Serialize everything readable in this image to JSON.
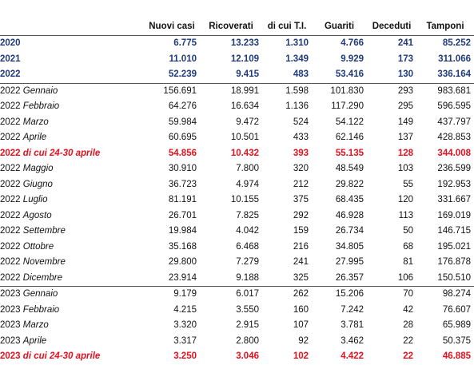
{
  "headers": [
    "",
    "Nuovi casi",
    "Ricoverati",
    "di cui T.I.",
    "Guariti",
    "Deceduti",
    "Tamponi"
  ],
  "rows": [
    {
      "type": "year",
      "year": "2020",
      "month": "",
      "values": [
        "6.775",
        "13.233",
        "1.310",
        "4.766",
        "241",
        "85.252"
      ]
    },
    {
      "type": "year",
      "year": "2021",
      "month": "",
      "values": [
        "11.010",
        "12.109",
        "1.349",
        "9.929",
        "173",
        "311.066"
      ]
    },
    {
      "type": "year",
      "year": "2022",
      "month": "",
      "values": [
        "52.239",
        "9.415",
        "483",
        "53.416",
        "130",
        "336.164"
      ]
    },
    {
      "type": "month",
      "year": "2022",
      "month": "Gennaio",
      "values": [
        "156.691",
        "18.991",
        "1.598",
        "101.830",
        "293",
        "983.681"
      ]
    },
    {
      "type": "month",
      "year": "2022",
      "month": "Febbraio",
      "values": [
        "64.276",
        "16.634",
        "1.136",
        "117.290",
        "295",
        "596.595"
      ]
    },
    {
      "type": "month",
      "year": "2022",
      "month": "Marzo",
      "values": [
        "59.984",
        "9.472",
        "524",
        "54.122",
        "149",
        "437.797"
      ]
    },
    {
      "type": "month",
      "year": "2022",
      "month": "Aprile",
      "values": [
        "60.695",
        "10.501",
        "433",
        "62.146",
        "137",
        "428.853"
      ]
    },
    {
      "type": "highlight",
      "year": "2022",
      "month": "di cui 24-30 aprile",
      "values": [
        "54.856",
        "10.432",
        "393",
        "55.135",
        "128",
        "344.008"
      ]
    },
    {
      "type": "month",
      "year": "2022",
      "month": "Maggio",
      "values": [
        "30.910",
        "7.800",
        "320",
        "48.549",
        "103",
        "236.599"
      ]
    },
    {
      "type": "month",
      "year": "2022",
      "month": "Giugno",
      "values": [
        "36.723",
        "4.974",
        "212",
        "29.822",
        "55",
        "192.953"
      ]
    },
    {
      "type": "month",
      "year": "2022",
      "month": "Luglio",
      "values": [
        "81.191",
        "10.155",
        "375",
        "68.435",
        "120",
        "331.667"
      ]
    },
    {
      "type": "month",
      "year": "2022",
      "month": "Agosto",
      "values": [
        "26.701",
        "7.825",
        "292",
        "46.928",
        "113",
        "169.019"
      ]
    },
    {
      "type": "month",
      "year": "2022",
      "month": "Settembre",
      "values": [
        "19.984",
        "4.042",
        "159",
        "26.734",
        "50",
        "146.715"
      ]
    },
    {
      "type": "month",
      "year": "2022",
      "month": "Ottobre",
      "values": [
        "35.168",
        "6.468",
        "216",
        "34.805",
        "68",
        "195.021"
      ]
    },
    {
      "type": "month",
      "year": "2022",
      "month": "Novembre",
      "values": [
        "29.800",
        "7.279",
        "241",
        "27.995",
        "81",
        "176.878"
      ]
    },
    {
      "type": "month",
      "year": "2022",
      "month": "Dicembre",
      "values": [
        "23.914",
        "9.188",
        "325",
        "26.357",
        "106",
        "150.510"
      ]
    },
    {
      "type": "month",
      "year": "2023",
      "month": "Gennaio",
      "values": [
        "9.179",
        "6.017",
        "262",
        "15.206",
        "70",
        "98.274"
      ]
    },
    {
      "type": "month",
      "year": "2023",
      "month": "Febbraio",
      "values": [
        "4.215",
        "3.550",
        "160",
        "7.242",
        "42",
        "76.607"
      ]
    },
    {
      "type": "month",
      "year": "2023",
      "month": "Marzo",
      "values": [
        "3.320",
        "2.915",
        "107",
        "3.781",
        "28",
        "65.989"
      ]
    },
    {
      "type": "month",
      "year": "2023",
      "month": "Aprile",
      "values": [
        "3.317",
        "2.800",
        "92",
        "3.462",
        "22",
        "50.375"
      ]
    },
    {
      "type": "highlight",
      "year": "2023",
      "month": "di cui 24-30 aprile",
      "values": [
        "3.250",
        "3.046",
        "102",
        "4.422",
        "22",
        "46.885"
      ]
    }
  ]
}
